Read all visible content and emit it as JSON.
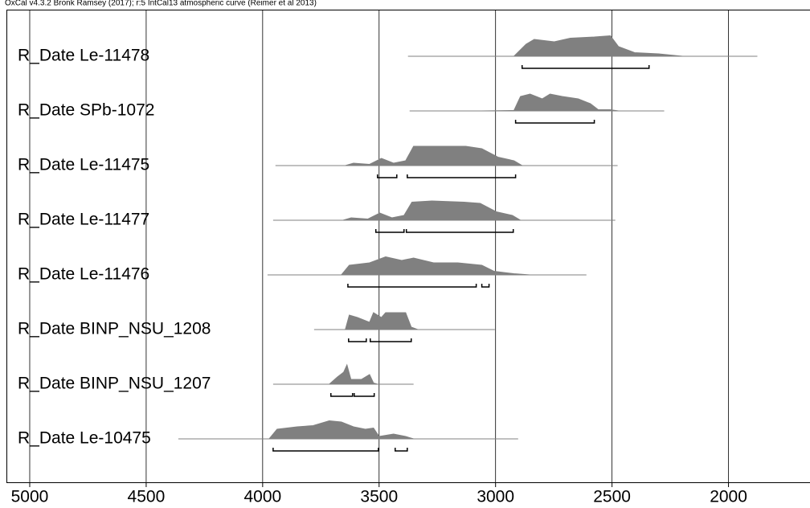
{
  "chart_data": {
    "type": "multiplot",
    "title": "OxCal v4.3.2 Bronk Ramsey (2017); r:5 IntCal13 atmospheric curve (Reimer et al 2013)",
    "xlim": [
      5100,
      1650
    ],
    "xticks": [
      5000,
      4500,
      4000,
      3500,
      3000,
      2500,
      2000
    ],
    "grid": true,
    "color": "#808080",
    "series": [
      {
        "name": "R_Date Le-11478",
        "range": [
          3376,
          1876
        ],
        "x": [
          2921,
          2869,
          2834,
          2748,
          2679,
          2576,
          2507,
          2472,
          2403,
          2300,
          2197
        ],
        "values": [
          0,
          0.5,
          0.7,
          0.6,
          0.75,
          0.8,
          0.85,
          0.4,
          0.15,
          0.1,
          0
        ],
        "hpd": [
          [
            2886,
            2341
          ]
        ]
      },
      {
        "name": "R_Date SPb-1072",
        "range": [
          3369,
          2276
        ],
        "x": [
          3059,
          2921,
          2893,
          2852,
          2800,
          2766,
          2714,
          2645,
          2593,
          2559,
          2507,
          2472
        ],
        "values": [
          0,
          0.02,
          0.6,
          0.7,
          0.5,
          0.7,
          0.6,
          0.5,
          0.3,
          0.05,
          0.05,
          0
        ],
        "hpd": [
          [
            2914,
            2576
          ]
        ]
      },
      {
        "name": "R_Date Le-11475",
        "range": [
          3945,
          2476
        ],
        "x": [
          3645,
          3610,
          3541,
          3490,
          3438,
          3386,
          3352,
          3266,
          3128,
          3059,
          2990,
          2921,
          2886
        ],
        "values": [
          0,
          0.1,
          0.05,
          0.3,
          0.1,
          0.2,
          0.8,
          0.8,
          0.8,
          0.7,
          0.35,
          0.2,
          0
        ],
        "hpd": [
          [
            3507,
            3424
          ],
          [
            3379,
            2914
          ]
        ]
      },
      {
        "name": "R_Date Le-11477",
        "range": [
          3955,
          2486
        ],
        "x": [
          3655,
          3620,
          3548,
          3497,
          3445,
          3393,
          3359,
          3273,
          3135,
          3066,
          2997,
          2928,
          2893
        ],
        "values": [
          0,
          0.1,
          0.05,
          0.3,
          0.1,
          0.2,
          0.75,
          0.8,
          0.75,
          0.7,
          0.35,
          0.2,
          0
        ],
        "hpd": [
          [
            3514,
            3393
          ],
          [
            3383,
            2924
          ]
        ]
      },
      {
        "name": "R_Date Le-11476",
        "range": [
          3979,
          2610
        ],
        "x": [
          3662,
          3628,
          3541,
          3472,
          3403,
          3352,
          3266,
          3162,
          3059,
          3007,
          2921,
          2852
        ],
        "values": [
          0,
          0.4,
          0.5,
          0.75,
          0.6,
          0.7,
          0.5,
          0.5,
          0.4,
          0.15,
          0.05,
          0
        ],
        "hpd": [
          [
            3634,
            3083
          ],
          [
            3059,
            3028
          ]
        ]
      },
      {
        "name": "R_Date BINP_NSU_1208",
        "range": [
          3779,
          3003
        ],
        "x": [
          3645,
          3628,
          3593,
          3541,
          3524,
          3490,
          3472,
          3386,
          3362,
          3334
        ],
        "values": [
          0,
          0.6,
          0.5,
          0.3,
          0.7,
          0.5,
          0.7,
          0.7,
          0.1,
          0
        ],
        "hpd": [
          [
            3631,
            3555
          ],
          [
            3538,
            3362
          ]
        ]
      },
      {
        "name": "R_Date BINP_NSU_1207",
        "range": [
          3955,
          3352
        ],
        "x": [
          3714,
          3679,
          3652,
          3638,
          3621,
          3576,
          3541,
          3524,
          3507
        ],
        "values": [
          0,
          0.3,
          0.5,
          0.8,
          0.2,
          0.2,
          0.4,
          0.05,
          0
        ],
        "hpd": [
          [
            3707,
            3614
          ],
          [
            3607,
            3521
          ]
        ]
      },
      {
        "name": "R_Date Le-10475",
        "range": [
          4362,
          2903
        ],
        "x": [
          3972,
          3938,
          3852,
          3783,
          3714,
          3662,
          3610,
          3559,
          3524,
          3500,
          3438,
          3386,
          3352
        ],
        "values": [
          0,
          0.4,
          0.5,
          0.55,
          0.75,
          0.7,
          0.5,
          0.4,
          0.45,
          0.1,
          0.2,
          0.1,
          0
        ],
        "hpd": [
          [
            3955,
            3503
          ],
          [
            3431,
            3379
          ]
        ]
      }
    ]
  }
}
